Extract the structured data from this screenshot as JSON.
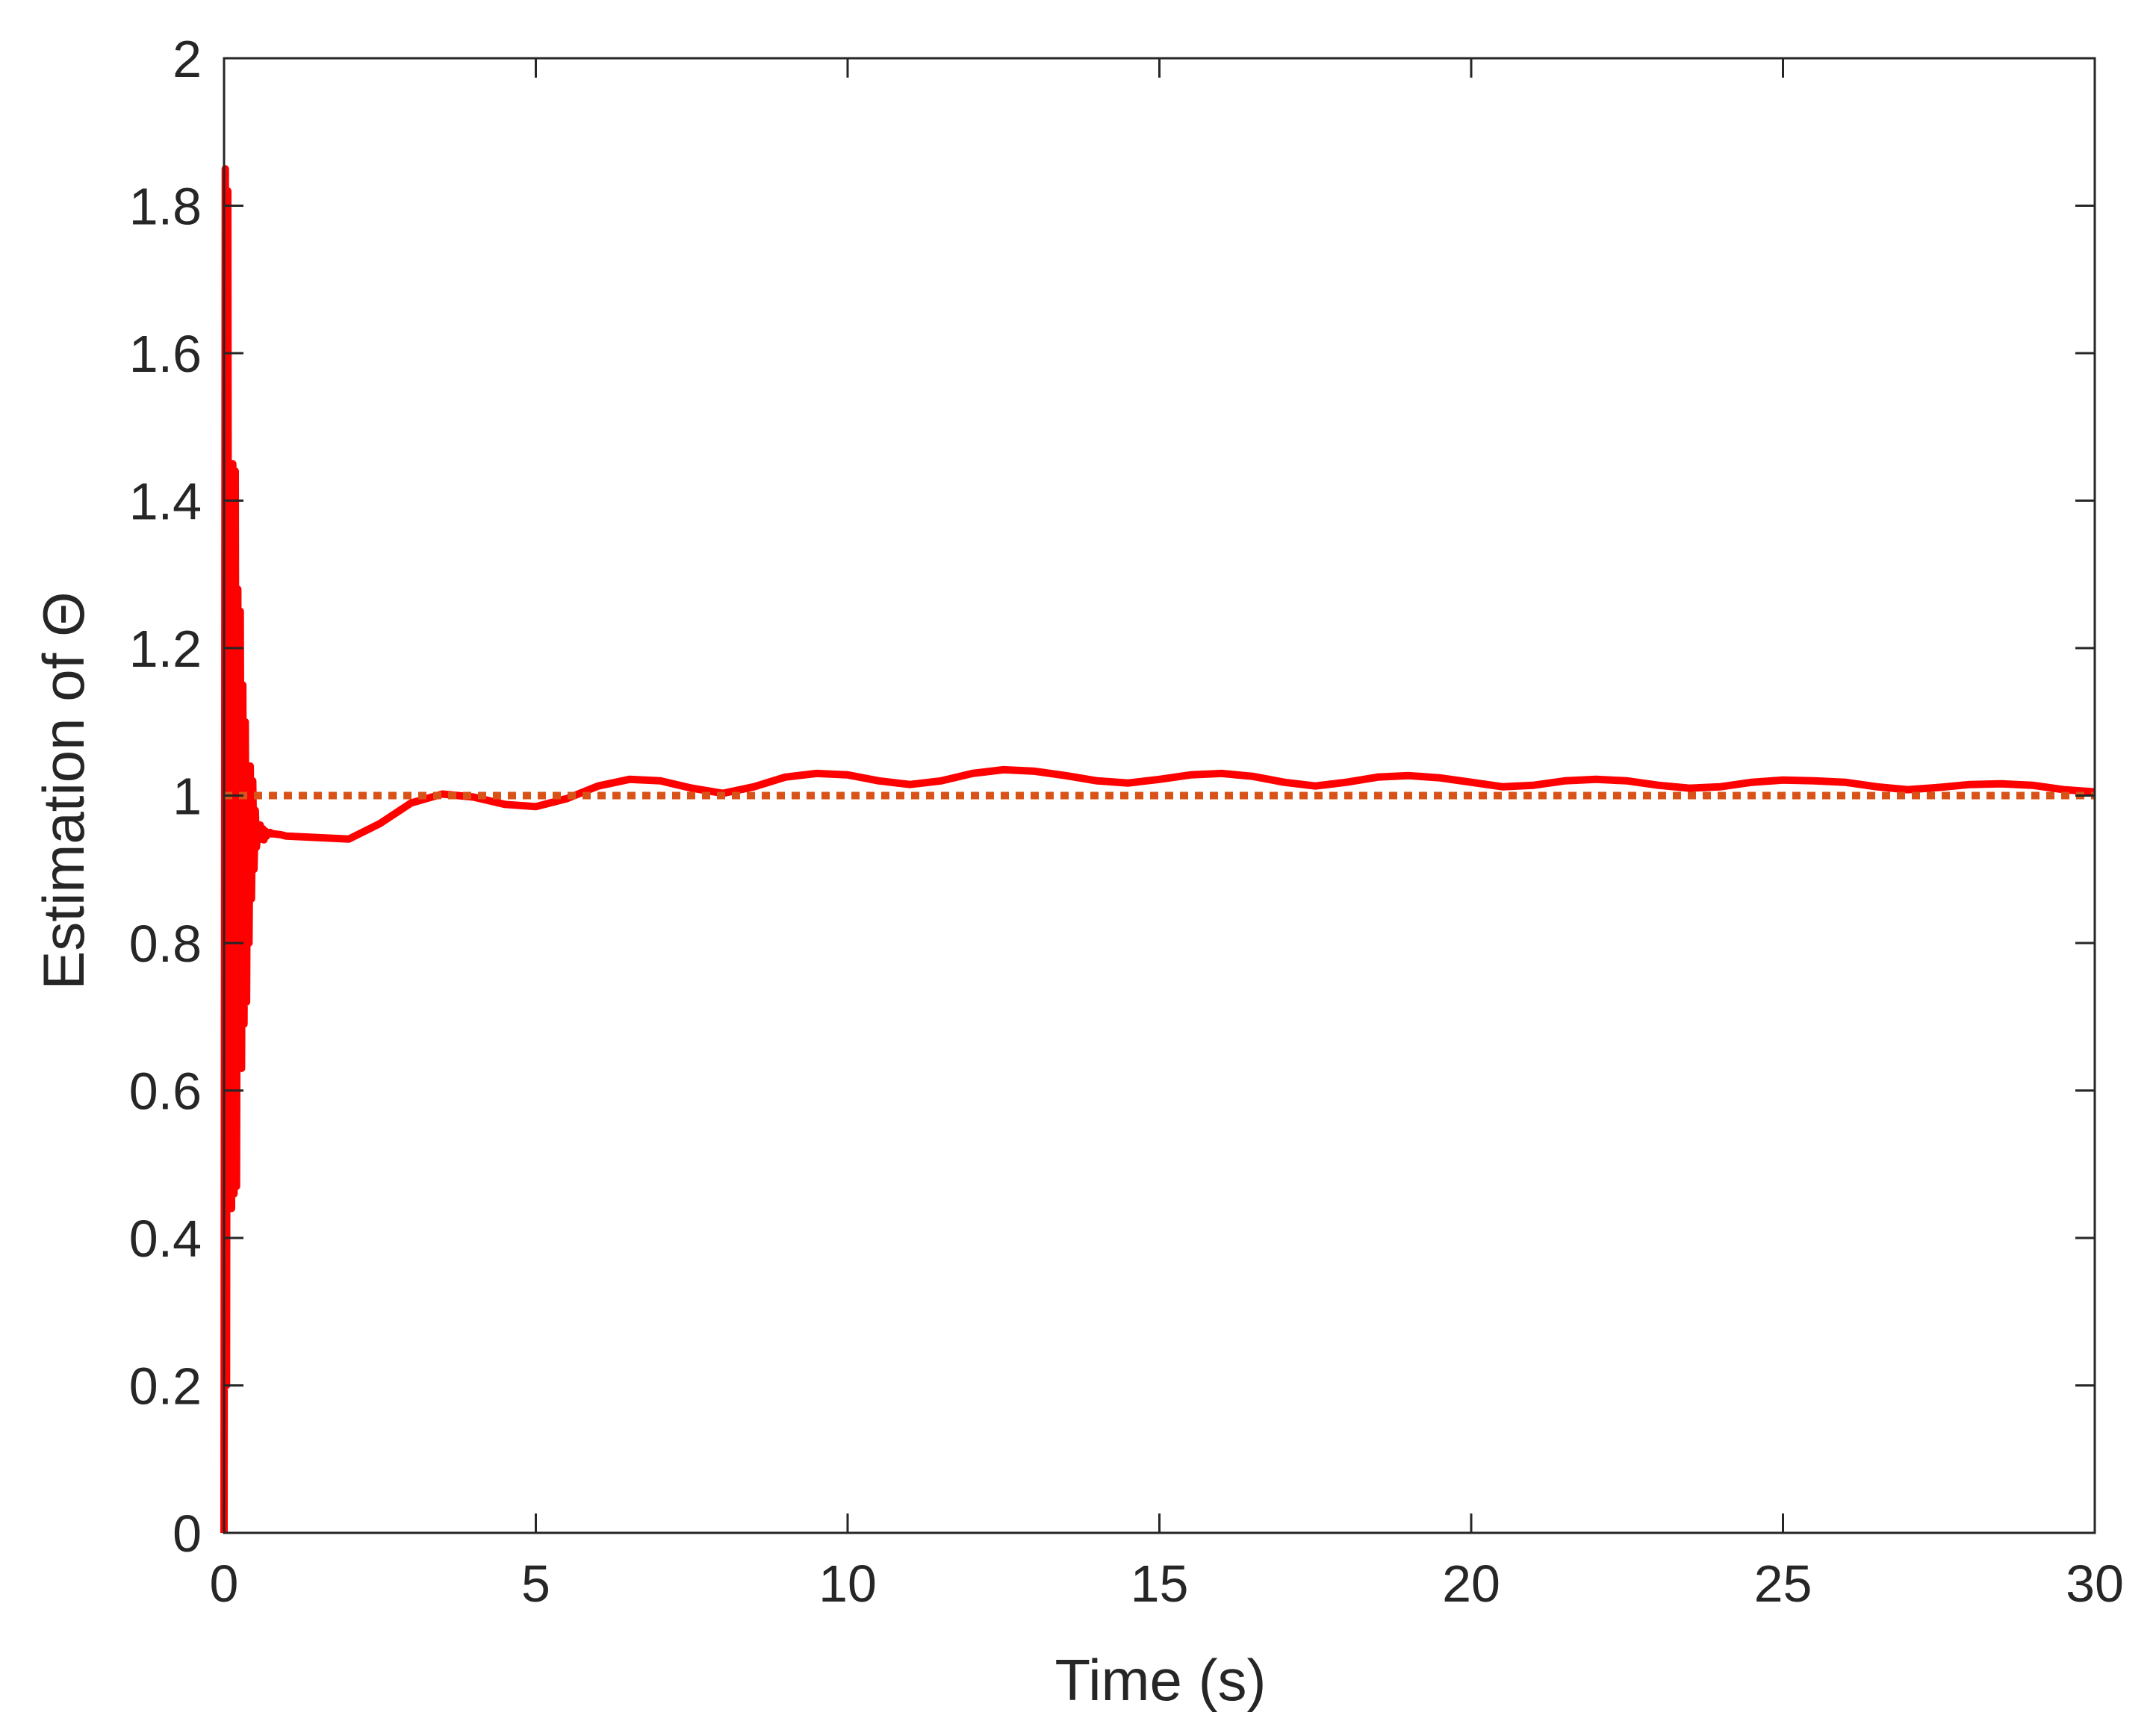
{
  "chart_data": {
    "type": "line",
    "title": "",
    "xlabel": "Time (s)",
    "ylabel": "Estimation of Θ",
    "xlim": [
      0,
      30
    ],
    "ylim": [
      0,
      2
    ],
    "xticks": [
      "0",
      "5",
      "10",
      "15",
      "20",
      "25",
      "30"
    ],
    "yticks": [
      "0",
      "0.2",
      "0.4",
      "0.6",
      "0.8",
      "1",
      "1.2",
      "1.4",
      "1.6",
      "1.8",
      "2"
    ],
    "grid": false,
    "legend": "none",
    "series": [
      {
        "style": "solid",
        "color": "#ff0000",
        "x": [
          0,
          0.02,
          0.04,
          0.06,
          0.08,
          0.1,
          0.12,
          0.14,
          0.16,
          0.18,
          0.2,
          0.22,
          0.24,
          0.26,
          0.28,
          0.3,
          0.32,
          0.34,
          0.36,
          0.38,
          0.4,
          0.42,
          0.44,
          0.46,
          0.48,
          0.5,
          0.52,
          0.54,
          0.56,
          0.58,
          0.6,
          0.62,
          0.64,
          0.66,
          0.68,
          0.7,
          0.72,
          0.74,
          0.76,
          0.8,
          0.9,
          1.0,
          1.5,
          2.0,
          2.5,
          3.0,
          3.5,
          4.0,
          4.5,
          5.0,
          5.5,
          6.0,
          6.5,
          7.0,
          7.5,
          8.0,
          8.5,
          9.0,
          9.5,
          10.0,
          10.5,
          11.0,
          11.5,
          12.0,
          12.5,
          13.0,
          13.5,
          14.0,
          14.5,
          15.0,
          15.5,
          16.0,
          16.5,
          17.0,
          17.5,
          18.0,
          18.5,
          19.0,
          19.5,
          20.0,
          20.5,
          21.0,
          21.5,
          22.0,
          22.5,
          23.0,
          23.5,
          24.0,
          24.5,
          25.0,
          25.5,
          26.0,
          26.5,
          27.0,
          27.5,
          28.0,
          28.5,
          29.0,
          29.5,
          30.0
        ],
        "y": [
          0,
          1.85,
          0.2,
          1.82,
          0.44,
          1.45,
          0.44,
          1.45,
          0.46,
          1.44,
          0.47,
          1.28,
          0.63,
          1.25,
          0.63,
          1.15,
          0.69,
          1.1,
          0.72,
          1.04,
          0.8,
          1.04,
          0.86,
          1.02,
          0.9,
          0.98,
          0.93,
          0.96,
          0.94,
          0.96,
          0.945,
          0.955,
          0.94,
          0.952,
          0.945,
          0.95,
          0.948,
          0.95,
          0.948,
          0.948,
          0.947,
          0.945,
          0.943,
          0.941,
          0.962,
          0.99,
          1.002,
          0.998,
          0.988,
          0.985,
          0.996,
          1.013,
          1.022,
          1.02,
          1.01,
          1.003,
          1.012,
          1.025,
          1.03,
          1.028,
          1.02,
          1.015,
          1.02,
          1.03,
          1.035,
          1.033,
          1.027,
          1.02,
          1.017,
          1.022,
          1.028,
          1.03,
          1.026,
          1.018,
          1.013,
          1.018,
          1.025,
          1.027,
          1.024,
          1.018,
          1.012,
          1.014,
          1.02,
          1.022,
          1.02,
          1.014,
          1.01,
          1.012,
          1.018,
          1.021,
          1.02,
          1.018,
          1.012,
          1.008,
          1.011,
          1.015,
          1.016,
          1.014,
          1.008,
          1.005
        ]
      },
      {
        "style": "dotted",
        "color": "#d95319",
        "x": [
          0,
          30
        ],
        "y": [
          1,
          1
        ]
      }
    ]
  }
}
